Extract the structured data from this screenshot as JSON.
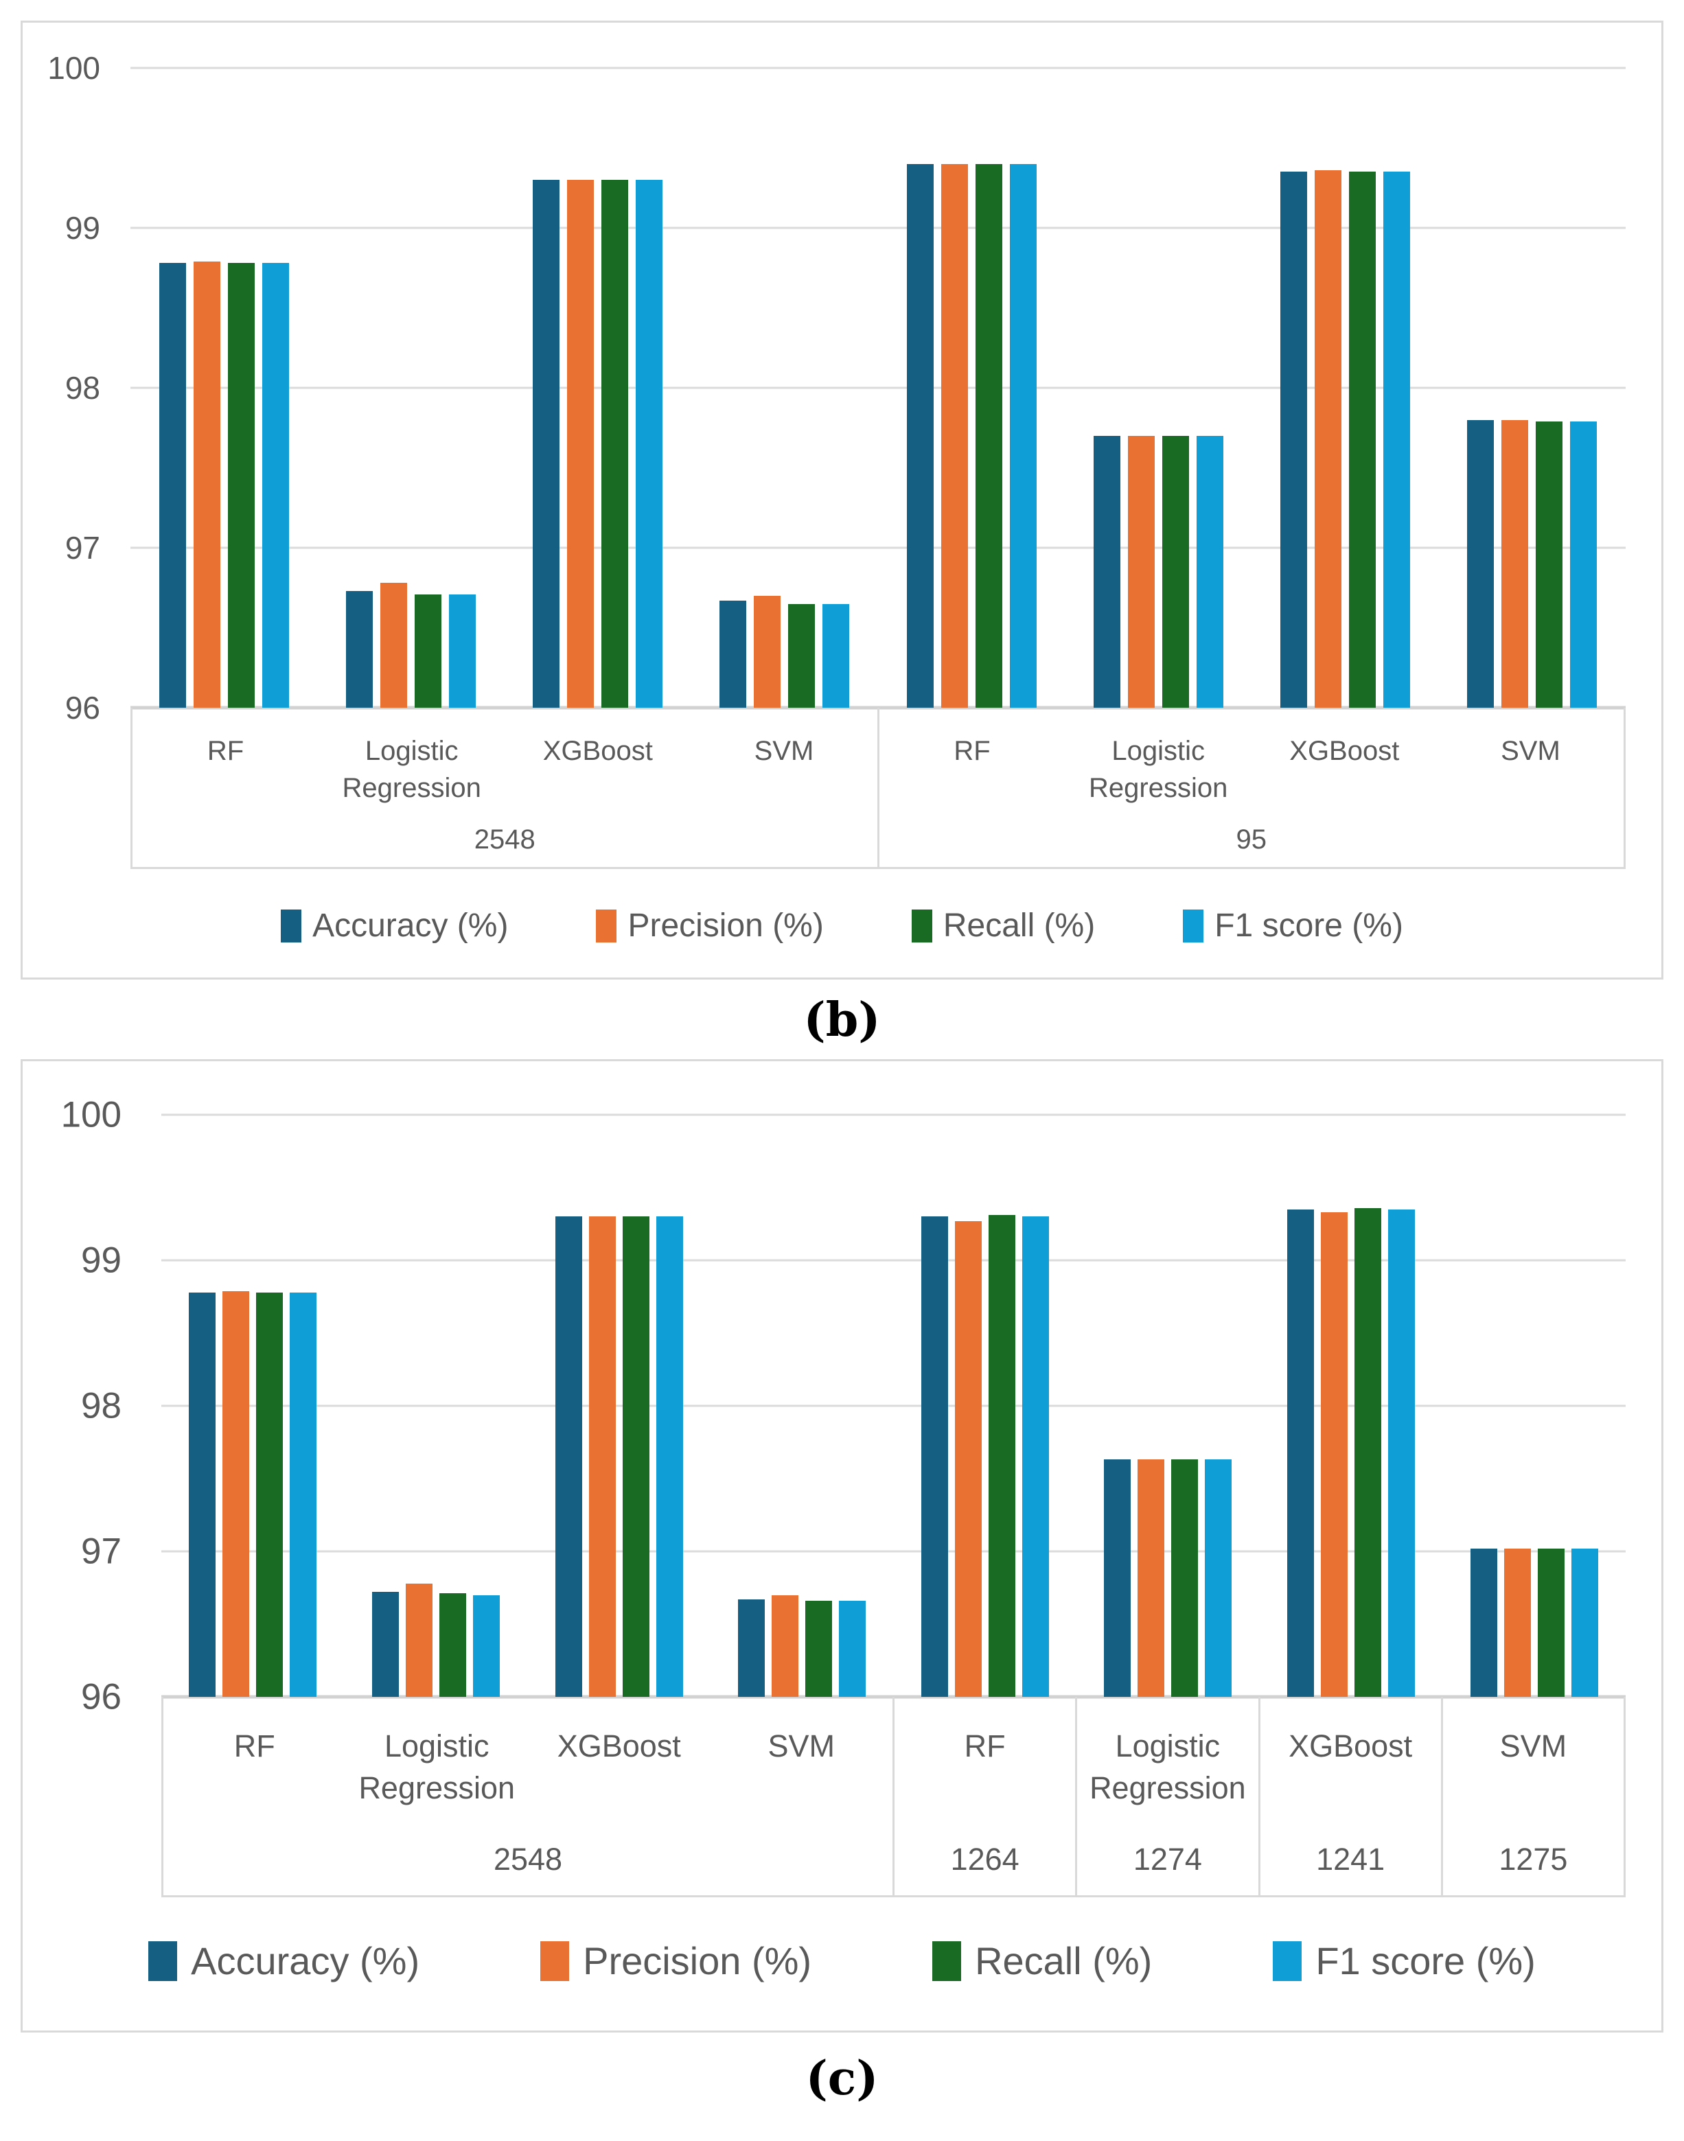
{
  "page": {
    "background": "#FFFFFF"
  },
  "colors": {
    "gridline": "#DBDBDB",
    "axis_baseline": "#D2D2D2",
    "box_border": "#D9D9D9",
    "tick_text": "#595959",
    "category_text": "#595959",
    "legend_text": "#595959",
    "caption_text": "#000000",
    "accuracy": "#156082",
    "precision": "#E97132",
    "recall": "#196B24",
    "f1_score": "#0F9ED5"
  },
  "chart_data": [
    {
      "id": "b",
      "type": "bar",
      "caption": "(b)",
      "title": "",
      "xlabel": "",
      "ylabel": "",
      "ylim": [
        96,
        100
      ],
      "yticks": [
        100,
        99,
        98,
        97,
        96
      ],
      "grid": true,
      "legend_position": "bottom",
      "series": [
        {
          "key": "accuracy",
          "name": "Accuracy (%)",
          "color": "#156082"
        },
        {
          "key": "precision",
          "name": "Precision (%)",
          "color": "#E97132"
        },
        {
          "key": "recall",
          "name": "Recall (%)",
          "color": "#196B24"
        },
        {
          "key": "f1",
          "name": "F1 score (%)",
          "color": "#0F9ED5"
        }
      ],
      "groups": [
        {
          "cells": [
            "2548"
          ],
          "categories": [
            {
              "name": "RF",
              "values": [
                98.78,
                98.79,
                98.78,
                98.78
              ]
            },
            {
              "name": "Logistic Regression",
              "values": [
                96.73,
                96.78,
                96.71,
                96.71
              ]
            },
            {
              "name": "XGBoost",
              "values": [
                99.3,
                99.3,
                99.3,
                99.3
              ]
            },
            {
              "name": "SVM",
              "values": [
                96.67,
                96.7,
                96.65,
                96.65
              ]
            }
          ]
        },
        {
          "cells": [
            "95"
          ],
          "categories": [
            {
              "name": "RF",
              "values": [
                99.4,
                99.4,
                99.4,
                99.4
              ]
            },
            {
              "name": "Logistic Regression",
              "values": [
                97.7,
                97.7,
                97.7,
                97.7
              ]
            },
            {
              "name": "XGBoost",
              "values": [
                99.35,
                99.36,
                99.35,
                99.35
              ]
            },
            {
              "name": "SVM",
              "values": [
                97.8,
                97.8,
                97.79,
                97.79
              ]
            }
          ]
        }
      ]
    },
    {
      "id": "c",
      "type": "bar",
      "caption": "(c)",
      "title": "",
      "xlabel": "",
      "ylabel": "",
      "ylim": [
        96,
        100
      ],
      "yticks": [
        100,
        99,
        98,
        97,
        96
      ],
      "grid": true,
      "legend_position": "bottom",
      "series": [
        {
          "key": "accuracy",
          "name": "Accuracy (%)",
          "color": "#156082"
        },
        {
          "key": "precision",
          "name": "Precision (%)",
          "color": "#E97132"
        },
        {
          "key": "recall",
          "name": "Recall (%)",
          "color": "#196B24"
        },
        {
          "key": "f1",
          "name": "F1 score (%)",
          "color": "#0F9ED5"
        }
      ],
      "groups": [
        {
          "cells": [
            "2548"
          ],
          "categories": [
            {
              "name": "RF",
              "values": [
                98.78,
                98.79,
                98.78,
                98.78
              ]
            },
            {
              "name": "Logistic Regression",
              "values": [
                96.72,
                96.78,
                96.71,
                96.7
              ]
            },
            {
              "name": "XGBoost",
              "values": [
                99.3,
                99.3,
                99.3,
                99.3
              ]
            },
            {
              "name": "SVM",
              "values": [
                96.67,
                96.7,
                96.66,
                96.66
              ]
            }
          ]
        },
        {
          "cells": [
            "1264",
            "1274",
            "1241",
            "1275"
          ],
          "categories": [
            {
              "name": "RF",
              "values": [
                99.3,
                99.27,
                99.31,
                99.3
              ]
            },
            {
              "name": "Logistic Regression",
              "values": [
                97.63,
                97.63,
                97.63,
                97.63
              ]
            },
            {
              "name": "XGBoost",
              "values": [
                99.35,
                99.33,
                99.36,
                99.35
              ]
            },
            {
              "name": "SVM",
              "values": [
                97.02,
                97.02,
                97.02,
                97.02
              ]
            }
          ]
        }
      ]
    }
  ]
}
